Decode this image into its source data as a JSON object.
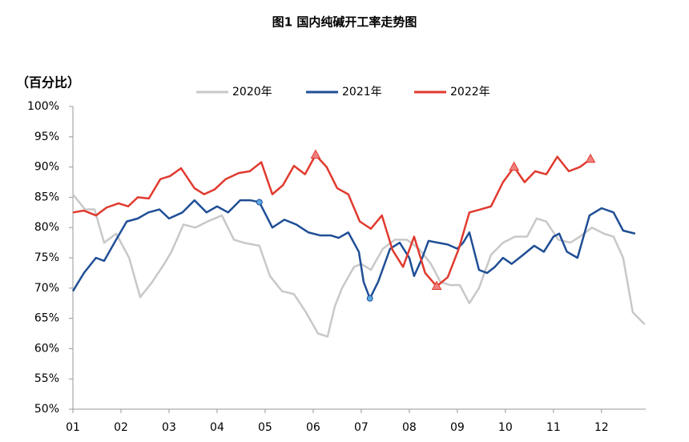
{
  "chart_data": {
    "type": "line",
    "title": "图1 国内纯碱开工率走势图",
    "y_label": "（百分比）",
    "xlim": [
      1,
      12.92
    ],
    "xticks": [
      {
        "value": 1,
        "label": "01"
      },
      {
        "value": 2,
        "label": "02"
      },
      {
        "value": 3,
        "label": "03"
      },
      {
        "value": 4,
        "label": "04"
      },
      {
        "value": 5,
        "label": "05"
      },
      {
        "value": 6,
        "label": "06"
      },
      {
        "value": 7,
        "label": "07"
      },
      {
        "value": 8,
        "label": "08"
      },
      {
        "value": 9,
        "label": "09"
      },
      {
        "value": 10,
        "label": "10"
      },
      {
        "value": 11,
        "label": "11"
      },
      {
        "value": 12,
        "label": "12"
      }
    ],
    "ylim": [
      50,
      100
    ],
    "yticks": [
      {
        "value": 50,
        "label": "50%"
      },
      {
        "value": 55,
        "label": "55%"
      },
      {
        "value": 60,
        "label": "60%"
      },
      {
        "value": 65,
        "label": "65%"
      },
      {
        "value": 70,
        "label": "70%"
      },
      {
        "value": 75,
        "label": "75%"
      },
      {
        "value": 80,
        "label": "80%"
      },
      {
        "value": 85,
        "label": "85%"
      },
      {
        "value": 90,
        "label": "90%"
      },
      {
        "value": 95,
        "label": "95%"
      },
      {
        "value": 100,
        "label": "100%"
      }
    ],
    "grid": false,
    "series": [
      {
        "name": "2020年",
        "color": "#c8c8c8",
        "x": [
          1.0,
          1.25,
          1.45,
          1.65,
          1.9,
          2.17,
          2.4,
          2.65,
          2.9,
          3.05,
          3.3,
          3.55,
          3.8,
          4.1,
          4.35,
          4.55,
          4.88,
          5.1,
          5.35,
          5.6,
          5.85,
          6.1,
          6.3,
          6.45,
          6.6,
          6.85,
          7.0,
          7.2,
          7.45,
          7.7,
          7.95,
          8.2,
          8.45,
          8.65,
          8.85,
          9.05,
          9.25,
          9.45,
          9.7,
          9.95,
          10.2,
          10.45,
          10.65,
          10.85,
          11.1,
          11.35,
          11.55,
          11.8,
          12.05,
          12.25,
          12.45,
          12.65,
          12.9
        ],
        "values": [
          85.5,
          83,
          83,
          77.5,
          79,
          75,
          68.5,
          71,
          74,
          76,
          80.5,
          80,
          81,
          82,
          78,
          77.5,
          77,
          72,
          69.5,
          69,
          66,
          62.5,
          62,
          67,
          70,
          73.5,
          74,
          73,
          76.5,
          78,
          78,
          76.5,
          74,
          71,
          70.5,
          70.5,
          67.5,
          70,
          75.5,
          77.5,
          78.5,
          78.5,
          81.5,
          81,
          78,
          77.5,
          78.5,
          80,
          79,
          78.5,
          75,
          66,
          64
        ]
      },
      {
        "name": "2021年",
        "color": "#1f4e96",
        "marker": "circle",
        "markers": [
          17,
          28
        ],
        "x": [
          1.0,
          1.23,
          1.48,
          1.65,
          1.9,
          2.12,
          2.35,
          2.57,
          2.8,
          3.0,
          3.28,
          3.53,
          3.78,
          4.0,
          4.23,
          4.48,
          4.7,
          4.88,
          5.15,
          5.4,
          5.65,
          5.9,
          6.15,
          6.37,
          6.53,
          6.73,
          6.95,
          7.05,
          7.18,
          7.35,
          7.6,
          7.8,
          8.0,
          8.1,
          8.27,
          8.4,
          8.6,
          8.8,
          9.0,
          9.12,
          9.25,
          9.45,
          9.62,
          9.78,
          9.95,
          10.13,
          10.37,
          10.6,
          10.8,
          11.0,
          11.12,
          11.28,
          11.5,
          11.75,
          12.0,
          12.25,
          12.45,
          12.7
        ],
        "values": [
          69.5,
          72.5,
          75,
          74.5,
          78,
          81,
          81.5,
          82.5,
          83,
          81.5,
          82.5,
          84.5,
          82.5,
          83.5,
          82.5,
          84.5,
          84.5,
          84.2,
          80,
          81.3,
          80.5,
          79.2,
          78.7,
          78.7,
          78.3,
          79.2,
          76,
          71,
          68.3,
          71,
          76.5,
          77.5,
          75,
          72,
          75,
          77.8,
          77.5,
          77.2,
          76.5,
          77.5,
          79.2,
          73,
          72.5,
          73.5,
          75,
          74,
          75.5,
          77,
          76,
          78.5,
          79,
          76,
          75,
          82,
          83.2,
          82.5,
          79.5,
          79
        ]
      },
      {
        "name": "2022年",
        "color": "#e03a2e",
        "marker": "triangle",
        "markers": [
          22,
          33,
          40,
          47
        ],
        "x": [
          1.0,
          1.23,
          1.48,
          1.7,
          1.95,
          2.15,
          2.35,
          2.58,
          2.82,
          3.02,
          3.25,
          3.53,
          3.73,
          3.95,
          4.18,
          4.45,
          4.68,
          4.92,
          5.15,
          5.37,
          5.6,
          5.83,
          6.05,
          6.28,
          6.5,
          6.73,
          6.97,
          7.2,
          7.43,
          7.65,
          7.87,
          8.1,
          8.33,
          8.57,
          8.8,
          9.03,
          9.25,
          9.48,
          9.7,
          9.95,
          10.18,
          10.4,
          10.62,
          10.85,
          11.08,
          11.32,
          11.55,
          11.77
        ],
        "values": [
          82.5,
          82.8,
          82,
          83.3,
          84,
          83.5,
          85,
          84.8,
          88,
          88.5,
          89.8,
          86.5,
          85.5,
          86.3,
          88,
          89,
          89.3,
          90.8,
          85.5,
          87,
          90.2,
          88.8,
          92,
          90,
          86.5,
          85.5,
          81,
          79.8,
          82,
          76.3,
          73.5,
          78.5,
          72.5,
          70.3,
          71.8,
          76.5,
          82.5,
          83,
          83.5,
          87.5,
          90,
          87.5,
          89.3,
          88.8,
          91.7,
          89.3,
          90,
          91.3
        ]
      }
    ]
  }
}
